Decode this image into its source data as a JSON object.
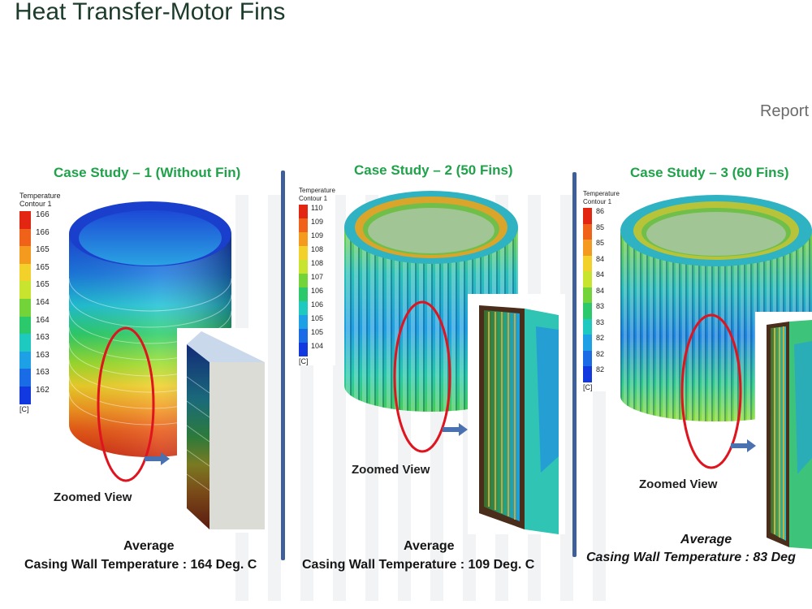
{
  "page": {
    "title": "Heat Transfer-Motor Fins",
    "report_label": "Report"
  },
  "cases": [
    {
      "title": "Case Study – 1 (Without Fin)",
      "legend_title": "Temperature",
      "legend_subtitle": "Contour 1",
      "legend_values": [
        "166",
        "166",
        "165",
        "165",
        "165",
        "164",
        "164",
        "163",
        "163",
        "163",
        "162"
      ],
      "legend_unit": "[C]",
      "zoom_label": "Zoomed View",
      "average_label": "Average",
      "casing_label": "Casing Wall Temperature : 164 Deg. C"
    },
    {
      "title": "Case Study – 2 (50 Fins)",
      "legend_title": "Temperature",
      "legend_subtitle": "Contour 1",
      "legend_values": [
        "110",
        "109",
        "109",
        "108",
        "108",
        "107",
        "106",
        "106",
        "105",
        "105",
        "104"
      ],
      "legend_unit": "[C]",
      "zoom_label": "Zoomed View",
      "average_label": "Average",
      "casing_label": "Casing Wall Temperature : 109 Deg. C"
    },
    {
      "title": "Case Study – 3 (60 Fins)",
      "legend_title": "Temperature",
      "legend_subtitle": "Contour 1",
      "legend_values": [
        "86",
        "85",
        "85",
        "84",
        "84",
        "84",
        "83",
        "83",
        "82",
        "82",
        "82"
      ],
      "legend_unit": "[C]",
      "zoom_label": "Zoomed View",
      "average_label": "Average",
      "casing_label": "Casing Wall Temperature : 83 Deg"
    }
  ],
  "colors": {
    "title": "#1d3b2a",
    "case_title": "#1fa24a",
    "divider": "#3e5f98",
    "highlight_ellipse": "#e0141e",
    "arrow": "#4a72b0",
    "legend_scale": [
      "#e32612",
      "#f0611a",
      "#f49a1f",
      "#f2d22a",
      "#c9e42e",
      "#73d43a",
      "#2bc86c",
      "#1ec9c0",
      "#1ea0e6",
      "#1a6be6",
      "#1238e0"
    ]
  }
}
